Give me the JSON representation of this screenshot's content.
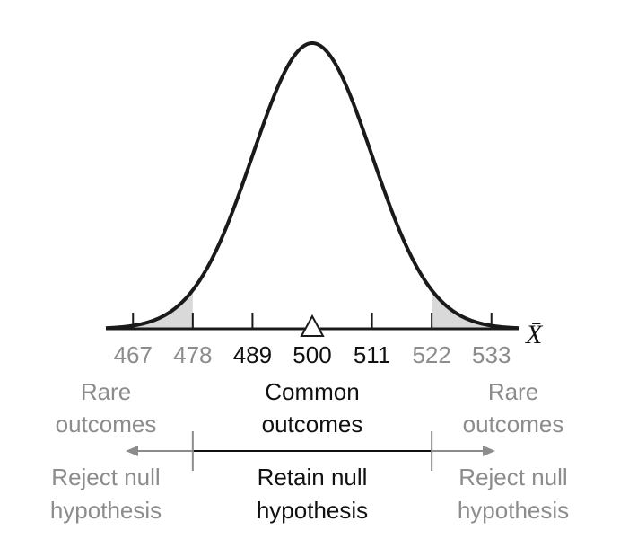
{
  "chart_data": {
    "type": "area",
    "distribution": "normal",
    "mean": 500,
    "standard_error": 11,
    "x_range": [
      462,
      538
    ],
    "axis_label": "X̄",
    "tick_values": [
      467,
      478,
      489,
      500,
      511,
      522,
      533
    ],
    "tick_labels": [
      "467",
      "478",
      "489",
      "500",
      "511",
      "522",
      "533"
    ],
    "tick_tone": [
      "muted",
      "muted",
      "dark",
      "dark",
      "dark",
      "muted",
      "muted"
    ],
    "shaded_tails": [
      {
        "name": "lower",
        "from": 462,
        "to": 478
      },
      {
        "name": "upper",
        "from": 522,
        "to": 538
      }
    ],
    "regions": {
      "left": {
        "outcome": [
          "Rare",
          "outcomes"
        ],
        "decision": [
          "Reject null",
          "hypothesis"
        ],
        "tone": "muted"
      },
      "center": {
        "outcome": [
          "Common",
          "outcomes"
        ],
        "decision": [
          "Retain null",
          "hypothesis"
        ],
        "tone": "dark"
      },
      "right": {
        "outcome": [
          "Rare",
          "outcomes"
        ],
        "decision": [
          "Reject null",
          "hypothesis"
        ],
        "tone": "muted"
      }
    },
    "colors": {
      "curve": "#1a1a1a",
      "tail_fill": "#d9d9d9",
      "dark_text": "#111111",
      "muted_text": "#8c8c8c",
      "muted_line": "#8c8c8c",
      "axis": "#1a1a1a"
    }
  }
}
